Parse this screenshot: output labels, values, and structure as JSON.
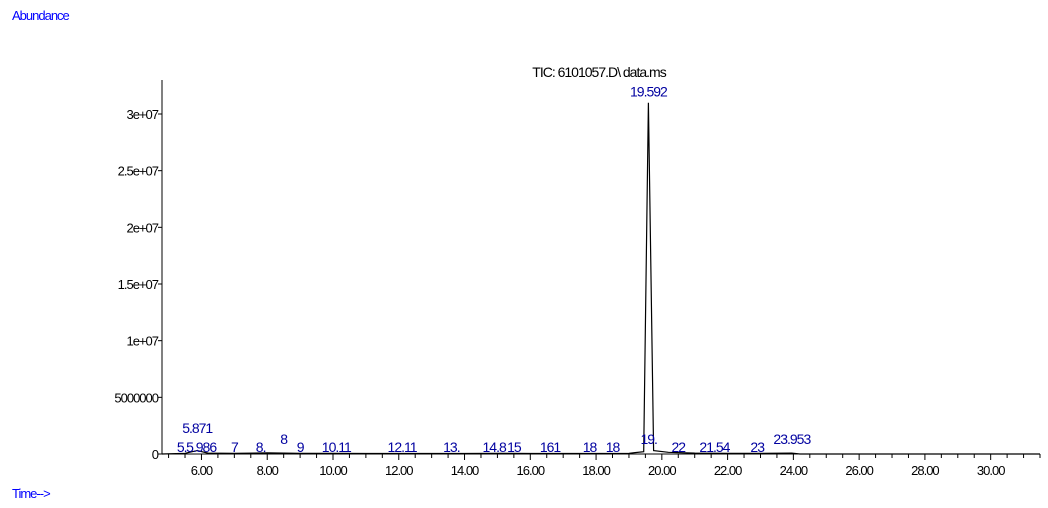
{
  "y_axis_title": "Abundance",
  "x_axis_title": "Time-->",
  "chart_data": {
    "type": "line",
    "title": "TIC: 6101057.D\\ data.ms",
    "xlabel": "Time-->",
    "ylabel": "Abundance",
    "xlim": [
      4.8,
      31.5
    ],
    "ylim": [
      0,
      33000000
    ],
    "x_ticks": [
      6.0,
      8.0,
      10.0,
      12.0,
      14.0,
      16.0,
      18.0,
      20.0,
      22.0,
      24.0,
      26.0,
      28.0,
      30.0
    ],
    "x_tick_labels": [
      "6.00",
      "8.00",
      "10.00",
      "12.00",
      "14.00",
      "16.00",
      "18.00",
      "20.00",
      "22.00",
      "24.00",
      "26.00",
      "28.00",
      "30.00"
    ],
    "y_ticks": [
      0,
      5000000,
      10000000,
      15000000,
      20000000,
      25000000,
      30000000
    ],
    "y_tick_labels": [
      "0",
      "5000000",
      "1e+07",
      "1.5e+07",
      "2e+07",
      "2.5e+07",
      "3e+07"
    ],
    "series": [
      {
        "name": "",
        "x": [
          4.8,
          5.5,
          5.87,
          6.2,
          7.0,
          8.0,
          9.0,
          10.0,
          11.0,
          12.0,
          13.0,
          14.0,
          15.0,
          16.0,
          17.0,
          18.0,
          19.0,
          19.45,
          19.592,
          19.75,
          20.2,
          21.0,
          22.0,
          23.0,
          23.95,
          24.2,
          31.5
        ],
        "y": [
          0,
          60000,
          300000,
          80000,
          50000,
          100000,
          60000,
          50000,
          40000,
          40000,
          40000,
          40000,
          60000,
          40000,
          40000,
          40000,
          60000,
          200000,
          31000000,
          300000,
          150000,
          80000,
          60000,
          50000,
          80000,
          0,
          0
        ]
      }
    ],
    "peak_labels": [
      {
        "text": "19.592",
        "x": 19.592,
        "y": 31000000
      },
      {
        "text": "5.871",
        "x": 5.871,
        "y": 3000000
      },
      {
        "text": "5.",
        "x": 5.4,
        "y": 0
      },
      {
        "text": "5.986",
        "x": 5.99,
        "y": 0
      },
      {
        "text": "7",
        "x": 7.0,
        "y": 0
      },
      {
        "text": "8.",
        "x": 7.8,
        "y": 0
      },
      {
        "text": "8",
        "x": 8.5,
        "y": 1500000
      },
      {
        "text": "9",
        "x": 9.0,
        "y": 0
      },
      {
        "text": "10.11",
        "x": 10.1,
        "y": 0
      },
      {
        "text": "12.11",
        "x": 12.1,
        "y": 0
      },
      {
        "text": "13.",
        "x": 13.6,
        "y": 0
      },
      {
        "text": "14.8",
        "x": 14.9,
        "y": 0
      },
      {
        "text": "15",
        "x": 15.5,
        "y": 0
      },
      {
        "text": "161",
        "x": 16.6,
        "y": 0
      },
      {
        "text": "18",
        "x": 17.8,
        "y": 0
      },
      {
        "text": "18",
        "x": 18.5,
        "y": 0
      },
      {
        "text": "19.",
        "x": 19.6,
        "y": 1500000
      },
      {
        "text": "22",
        "x": 20.5,
        "y": 0
      },
      {
        "text": "21.54",
        "x": 21.6,
        "y": 0
      },
      {
        "text": "23",
        "x": 22.9,
        "y": 0
      },
      {
        "text": "23.953",
        "x": 23.953,
        "y": 1500000
      }
    ]
  }
}
